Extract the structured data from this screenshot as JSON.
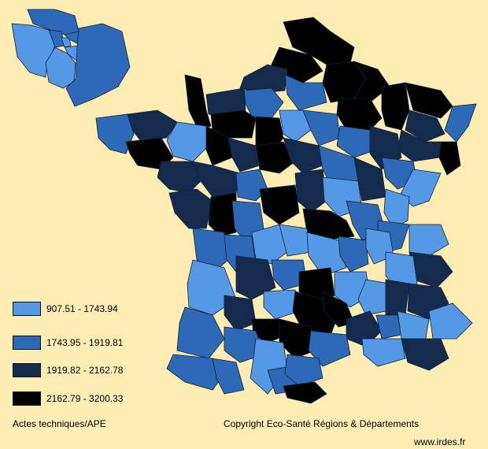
{
  "map": {
    "legend": [
      {
        "label": "907.51 - 1743.94",
        "color": "#5599E6"
      },
      {
        "label": "1743.95 - 1919.81",
        "color": "#2E69B8"
      },
      {
        "label": "1919.82 - 2162.78",
        "color": "#142B4D"
      },
      {
        "label": "2162.79 - 3200.33",
        "color": "#000000"
      }
    ],
    "indicator": "Actes techniques/APE",
    "copyright": "Copyright Eco-Santé Régions & Départements",
    "website": "www.irdes.fr"
  }
}
